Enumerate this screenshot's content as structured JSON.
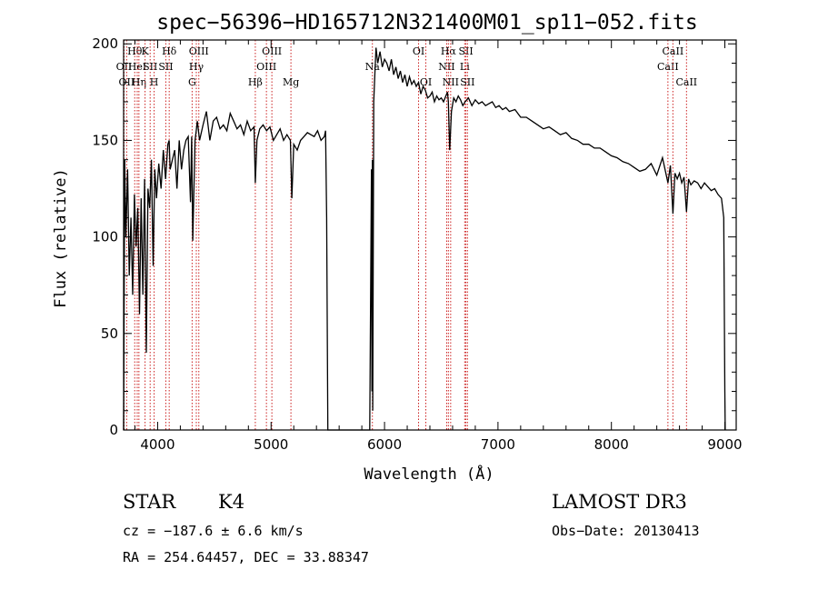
{
  "chart_data": {
    "type": "line",
    "title": "spec−56396−HD165712N321400M01_sp11−052.fits",
    "xlabel": "Wavelength (Å)",
    "ylabel": "Flux (relative)",
    "xlim": [
      3700,
      9100
    ],
    "ylim": [
      0,
      202
    ],
    "xticks": [
      4000,
      5000,
      6000,
      7000,
      8000,
      9000
    ],
    "yticks": [
      0,
      50,
      100,
      150,
      200
    ],
    "grid": false,
    "line_color": "#000000",
    "marker_color": "#cc2222",
    "series": [
      {
        "x": [
          3700,
          3710,
          3720,
          3735,
          3750,
          3765,
          3780,
          3795,
          3810,
          3825,
          3840,
          3855,
          3870,
          3885,
          3900,
          3915,
          3930,
          3945,
          3960,
          3975,
          3990,
          4010,
          4030,
          4050,
          4070,
          4090,
          4101,
          4110,
          4130,
          4150,
          4170,
          4190,
          4210,
          4230,
          4250,
          4270,
          4290,
          4300,
          4310,
          4330,
          4340,
          4350,
          4370,
          4400,
          4430,
          4460,
          4490,
          4520,
          4550,
          4580,
          4610,
          4640,
          4670,
          4700,
          4730,
          4760,
          4790,
          4820,
          4850,
          4861,
          4875,
          4900,
          4930,
          4960,
          4990,
          5020,
          5050,
          5080,
          5110,
          5140,
          5170,
          5183,
          5200,
          5230,
          5260,
          5290,
          5320,
          5350,
          5380,
          5410,
          5440,
          5470,
          5480,
          5490,
          5500,
          5870,
          5885,
          5889,
          5893,
          5896,
          5905,
          5915,
          5925,
          5940,
          5960,
          5980,
          6000,
          6020,
          6040,
          6060,
          6080,
          6100,
          6120,
          6140,
          6160,
          6180,
          6200,
          6220,
          6240,
          6260,
          6280,
          6300,
          6320,
          6340,
          6360,
          6380,
          6400,
          6420,
          6440,
          6460,
          6480,
          6500,
          6520,
          6540,
          6555,
          6563,
          6575,
          6590,
          6610,
          6630,
          6650,
          6670,
          6690,
          6710,
          6740,
          6770,
          6800,
          6830,
          6860,
          6890,
          6920,
          6950,
          6980,
          7010,
          7040,
          7070,
          7100,
          7150,
          7200,
          7250,
          7300,
          7350,
          7400,
          7450,
          7500,
          7550,
          7600,
          7650,
          7700,
          7750,
          7800,
          7850,
          7900,
          7950,
          8000,
          8050,
          8100,
          8150,
          8200,
          8250,
          8300,
          8350,
          8400,
          8450,
          8498,
          8520,
          8542,
          8560,
          8580,
          8600,
          8620,
          8640,
          8662,
          8680,
          8700,
          8730,
          8760,
          8790,
          8820,
          8850,
          8880,
          8910,
          8940,
          8970,
          8990,
          9000,
          9003
        ],
        "y": [
          0,
          140,
          100,
          135,
          80,
          110,
          70,
          122,
          95,
          115,
          60,
          120,
          70,
          130,
          40,
          125,
          115,
          140,
          85,
          135,
          120,
          138,
          125,
          145,
          130,
          148,
          150,
          135,
          140,
          145,
          125,
          150,
          135,
          145,
          150,
          152,
          118,
          152,
          98,
          150,
          155,
          160,
          150,
          158,
          165,
          150,
          160,
          162,
          156,
          158,
          155,
          164,
          160,
          156,
          158,
          153,
          160,
          155,
          157,
          128,
          150,
          156,
          158,
          155,
          157,
          150,
          153,
          156,
          150,
          153,
          150,
          120,
          148,
          145,
          150,
          152,
          154,
          153,
          152,
          155,
          150,
          152,
          155,
          110,
          0,
          0,
          135,
          20,
          140,
          10,
          170,
          185,
          198,
          190,
          196,
          188,
          192,
          190,
          186,
          192,
          184,
          188,
          182,
          186,
          180,
          184,
          178,
          183,
          179,
          181,
          178,
          180,
          174,
          178,
          176,
          172,
          173,
          175,
          170,
          173,
          171,
          172,
          170,
          173,
          175,
          170,
          145,
          165,
          172,
          170,
          173,
          171,
          168,
          170,
          172,
          168,
          171,
          169,
          170,
          168,
          169,
          170,
          167,
          168,
          166,
          167,
          165,
          166,
          162,
          162,
          160,
          158,
          156,
          157,
          155,
          153,
          154,
          151,
          150,
          148,
          148,
          146,
          146,
          144,
          142,
          141,
          139,
          138,
          136,
          134,
          135,
          138,
          132,
          141,
          128,
          137,
          112,
          133,
          130,
          133,
          128,
          131,
          113,
          130,
          127,
          129,
          128,
          125,
          128,
          126,
          124,
          125,
          122,
          120,
          110,
          20,
          0
        ]
      }
    ],
    "line_markers": [
      {
        "x": 3704,
        "label": "OII",
        "row": 2
      },
      {
        "x": 3727,
        "label": "OII",
        "row": 3
      },
      {
        "x": 3798,
        "label": "Hθ",
        "row": 1
      },
      {
        "x": 3820,
        "label": "HeI",
        "row": 2
      },
      {
        "x": 3835,
        "label": "Hη",
        "row": 3
      },
      {
        "x": 3889,
        "label": "K",
        "row": 1
      },
      {
        "x": 3934,
        "label": "SII",
        "row": 2
      },
      {
        "x": 3969,
        "label": "H",
        "row": 3
      },
      {
        "x": 4072,
        "label": "SII",
        "row": 2
      },
      {
        "x": 4102,
        "label": "Hδ",
        "row": 1
      },
      {
        "x": 4304,
        "label": "G",
        "row": 3
      },
      {
        "x": 4341,
        "label": "Hγ",
        "row": 2
      },
      {
        "x": 4363,
        "label": "OIII",
        "row": 1
      },
      {
        "x": 4861,
        "label": "Hβ",
        "row": 3
      },
      {
        "x": 4959,
        "label": "OIII",
        "row": 2
      },
      {
        "x": 5007,
        "label": "OIII",
        "row": 1
      },
      {
        "x": 5175,
        "label": "Mg",
        "row": 3
      },
      {
        "x": 5893,
        "label": "Na",
        "row": 2
      },
      {
        "x": 6300,
        "label": "OI",
        "row": 1
      },
      {
        "x": 6364,
        "label": "OI",
        "row": 3
      },
      {
        "x": 6548,
        "label": "NII",
        "row": 2
      },
      {
        "x": 6563,
        "label": "Hα",
        "row": 1
      },
      {
        "x": 6583,
        "label": "NII",
        "row": 3
      },
      {
        "x": 6707,
        "label": "Li",
        "row": 2
      },
      {
        "x": 6717,
        "label": "SII",
        "row": 1
      },
      {
        "x": 6731,
        "label": "SII",
        "row": 3
      },
      {
        "x": 8498,
        "label": "CaII",
        "row": 2
      },
      {
        "x": 8542,
        "label": "CaII",
        "row": 1
      },
      {
        "x": 8662,
        "label": "CaII",
        "row": 3
      }
    ]
  },
  "info": {
    "object_class": "STAR",
    "subclass": "K4",
    "survey": "LAMOST DR3",
    "cz": "cz = −187.6 ± 6.6 km/s",
    "obs_date": "Obs−Date: 20130413",
    "coords": "RA = 254.64457, DEC =  33.88347"
  }
}
